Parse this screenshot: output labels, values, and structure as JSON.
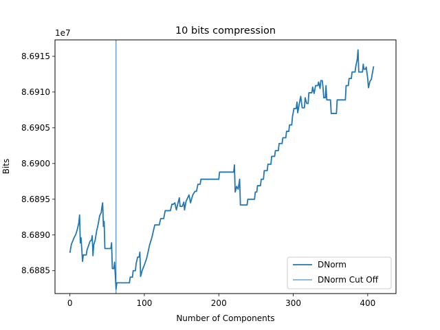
{
  "chart_data": {
    "type": "line",
    "title": "10 bits compression",
    "xlabel": "Number of Components",
    "ylabel": "Bits",
    "offset_label": "1e7",
    "xlim": [
      -20,
      438
    ],
    "ylim": [
      86881800,
      86917300
    ],
    "x_ticks": [
      0,
      100,
      200,
      300,
      400
    ],
    "x_tick_labels": [
      "0",
      "100",
      "200",
      "300",
      "400"
    ],
    "y_ticks": [
      86885000,
      86890000,
      86895000,
      86900000,
      86905000,
      86910000,
      86915000
    ],
    "y_tick_labels": [
      "8.6885",
      "8.6890",
      "8.6895",
      "8.6900",
      "8.6905",
      "8.6910",
      "8.6915"
    ],
    "grid": false,
    "legend_position": "lower-right",
    "series_color": "#1f77b4",
    "series": [
      {
        "name": "DNorm",
        "points": [
          [
            0,
            86887500
          ],
          [
            2,
            86888700
          ],
          [
            4,
            86889200
          ],
          [
            6,
            86889700
          ],
          [
            8,
            86890100
          ],
          [
            10,
            86890800
          ],
          [
            12,
            86891700
          ],
          [
            13,
            86892800
          ],
          [
            14,
            86888900
          ],
          [
            15,
            86889600
          ],
          [
            17,
            86886300
          ],
          [
            18,
            86887200
          ],
          [
            22,
            86887200
          ],
          [
            23,
            86887900
          ],
          [
            25,
            86888500
          ],
          [
            27,
            86889100
          ],
          [
            29,
            86889300
          ],
          [
            30,
            86889900
          ],
          [
            31,
            86887100
          ],
          [
            32,
            86888600
          ],
          [
            34,
            86889300
          ],
          [
            36,
            86890600
          ],
          [
            38,
            86891500
          ],
          [
            40,
            86892700
          ],
          [
            42,
            86893100
          ],
          [
            43,
            86893900
          ],
          [
            44,
            86894500
          ],
          [
            45,
            86891200
          ],
          [
            46,
            86891900
          ],
          [
            47,
            86888100
          ],
          [
            55,
            86888100
          ],
          [
            56,
            86888900
          ],
          [
            57,
            86885300
          ],
          [
            59,
            86885300
          ],
          [
            60,
            86886200
          ],
          [
            62,
            86882400
          ],
          [
            63,
            86883300
          ],
          [
            70,
            86883300
          ],
          [
            80,
            86883300
          ],
          [
            81,
            86884100
          ],
          [
            84,
            86884100
          ],
          [
            85,
            86885000
          ],
          [
            88,
            86885000
          ],
          [
            89,
            86886000
          ],
          [
            91,
            86886900
          ],
          [
            93,
            86886900
          ],
          [
            94,
            86887600
          ],
          [
            95,
            86884200
          ],
          [
            97,
            86885000
          ],
          [
            100,
            86885800
          ],
          [
            103,
            86886700
          ],
          [
            105,
            86887600
          ],
          [
            107,
            86888600
          ],
          [
            110,
            86889600
          ],
          [
            112,
            86890500
          ],
          [
            114,
            86891400
          ],
          [
            120,
            86891400
          ],
          [
            122,
            86892300
          ],
          [
            126,
            86892300
          ],
          [
            128,
            86893400
          ],
          [
            135,
            86893400
          ],
          [
            137,
            86894300
          ],
          [
            139,
            86894300
          ],
          [
            141,
            86894500
          ],
          [
            143,
            86893500
          ],
          [
            145,
            86894400
          ],
          [
            147,
            86895200
          ],
          [
            148,
            86894000
          ],
          [
            151,
            86894000
          ],
          [
            153,
            86894600
          ],
          [
            154,
            86893500
          ],
          [
            156,
            86894700
          ],
          [
            160,
            86895600
          ],
          [
            162,
            86894500
          ],
          [
            165,
            86895600
          ],
          [
            168,
            86896100
          ],
          [
            170,
            86896100
          ],
          [
            172,
            86897100
          ],
          [
            175,
            86897100
          ],
          [
            176,
            86897800
          ],
          [
            200,
            86897800
          ],
          [
            201,
            86898800
          ],
          [
            220,
            86898800
          ],
          [
            221,
            86899800
          ],
          [
            222,
            86896000
          ],
          [
            224,
            86896800
          ],
          [
            226,
            86896400
          ],
          [
            228,
            86897800
          ],
          [
            229,
            86894200
          ],
          [
            238,
            86894200
          ],
          [
            239,
            86895000
          ],
          [
            248,
            86895000
          ],
          [
            249,
            86896000
          ],
          [
            251,
            86896000
          ],
          [
            252,
            86896900
          ],
          [
            256,
            86896900
          ],
          [
            257,
            86897800
          ],
          [
            260,
            86897800
          ],
          [
            261,
            86899000
          ],
          [
            265,
            86899000
          ],
          [
            266,
            86899900
          ],
          [
            270,
            86899900
          ],
          [
            271,
            86901000
          ],
          [
            275,
            86901000
          ],
          [
            276,
            86901800
          ],
          [
            280,
            86901800
          ],
          [
            281,
            86902800
          ],
          [
            285,
            86902800
          ],
          [
            286,
            86903600
          ],
          [
            290,
            86903600
          ],
          [
            291,
            86904500
          ],
          [
            294,
            86904500
          ],
          [
            295,
            86905400
          ],
          [
            298,
            86905400
          ],
          [
            299,
            86906600
          ],
          [
            301,
            86907700
          ],
          [
            304,
            86907700
          ],
          [
            305,
            86908600
          ],
          [
            306,
            86907100
          ],
          [
            308,
            86908300
          ],
          [
            310,
            86909400
          ],
          [
            312,
            86907800
          ],
          [
            315,
            86907800
          ],
          [
            316,
            86909200
          ],
          [
            318,
            86908400
          ],
          [
            320,
            86908400
          ],
          [
            321,
            86909900
          ],
          [
            325,
            86909900
          ],
          [
            326,
            86910700
          ],
          [
            328,
            86909800
          ],
          [
            330,
            86910900
          ],
          [
            333,
            86910900
          ],
          [
            334,
            86911400
          ],
          [
            336,
            86910500
          ],
          [
            337,
            86911600
          ],
          [
            339,
            86911600
          ],
          [
            340,
            86910600
          ],
          [
            341,
            86909200
          ],
          [
            343,
            86909200
          ],
          [
            344,
            86910900
          ],
          [
            345,
            86908900
          ],
          [
            350,
            86908900
          ],
          [
            351,
            86907000
          ],
          [
            358,
            86907000
          ],
          [
            359,
            86908900
          ],
          [
            370,
            86908900
          ],
          [
            371,
            86910900
          ],
          [
            374,
            86910900
          ],
          [
            375,
            86911900
          ],
          [
            378,
            86911900
          ],
          [
            379,
            86912800
          ],
          [
            383,
            86912800
          ],
          [
            384,
            86913600
          ],
          [
            386,
            86914600
          ],
          [
            387,
            86915900
          ],
          [
            388,
            86912800
          ],
          [
            393,
            86912800
          ],
          [
            394,
            86913900
          ],
          [
            395,
            86913200
          ],
          [
            397,
            86913200
          ],
          [
            398,
            86913500
          ],
          [
            399,
            86912700
          ],
          [
            400,
            86911900
          ],
          [
            401,
            86910600
          ],
          [
            403,
            86911500
          ],
          [
            405,
            86911800
          ],
          [
            406,
            86912500
          ],
          [
            408,
            86913600
          ]
        ]
      },
      {
        "name": "DNorm Cut Off",
        "vertical_line_x": 62
      }
    ]
  }
}
